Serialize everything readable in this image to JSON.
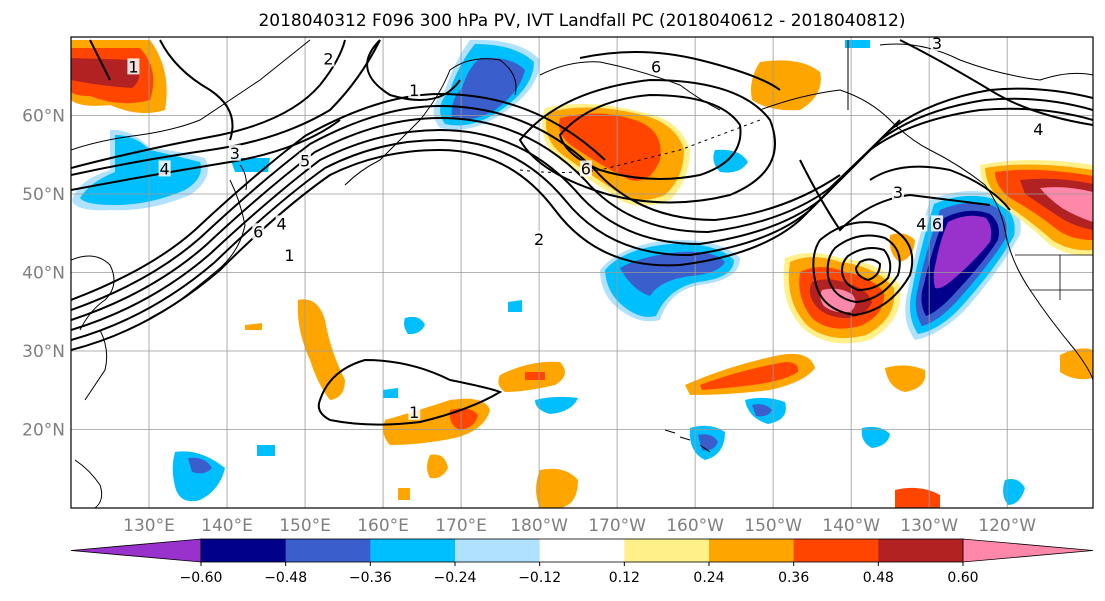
{
  "figure": {
    "title": "2018040312 F096 300 hPa PV, IVT Landfall PC (2018040612 - 2018040812)"
  },
  "map": {
    "lon_range": [
      120,
      251
    ],
    "lat_range": [
      10,
      70
    ],
    "lon_ticks": [
      {
        "lon": 130,
        "label": "130°E"
      },
      {
        "lon": 140,
        "label": "140°E"
      },
      {
        "lon": 150,
        "label": "150°E"
      },
      {
        "lon": 160,
        "label": "160°E"
      },
      {
        "lon": 170,
        "label": "170°E"
      },
      {
        "lon": 180,
        "label": "180°W"
      },
      {
        "lon": 190,
        "label": "170°W"
      },
      {
        "lon": 200,
        "label": "160°W"
      },
      {
        "lon": 210,
        "label": "150°W"
      },
      {
        "lon": 220,
        "label": "140°W"
      },
      {
        "lon": 230,
        "label": "130°W"
      },
      {
        "lon": 240,
        "label": "120°W"
      }
    ],
    "lat_ticks": [
      {
        "lat": 20,
        "label": "20°N"
      },
      {
        "lat": 30,
        "label": "30°N"
      },
      {
        "lat": 40,
        "label": "40°N"
      },
      {
        "lat": 50,
        "label": "50°N"
      },
      {
        "lat": 60,
        "label": "60°N"
      }
    ],
    "grid": true,
    "contour_labels": [
      {
        "text": "2",
        "lon": 153,
        "lat": 67
      },
      {
        "text": "1",
        "lon": 128,
        "lat": 66
      },
      {
        "text": "3",
        "lon": 141,
        "lat": 55
      },
      {
        "text": "5",
        "lon": 150,
        "lat": 54
      },
      {
        "text": "4",
        "lon": 132,
        "lat": 53
      },
      {
        "text": "6",
        "lon": 144,
        "lat": 45
      },
      {
        "text": "4",
        "lon": 147,
        "lat": 46
      },
      {
        "text": "1",
        "lon": 148,
        "lat": 42
      },
      {
        "text": "6",
        "lon": 195,
        "lat": 66
      },
      {
        "text": "6",
        "lon": 186,
        "lat": 53
      },
      {
        "text": "2",
        "lon": 180,
        "lat": 44
      },
      {
        "text": "1",
        "lon": 164,
        "lat": 63
      },
      {
        "text": "3",
        "lon": 226,
        "lat": 50
      },
      {
        "text": "3",
        "lon": 231,
        "lat": 69
      },
      {
        "text": "6",
        "lon": 231,
        "lat": 46
      },
      {
        "text": "4",
        "lon": 229,
        "lat": 46
      },
      {
        "text": "4",
        "lon": 244,
        "lat": 58
      },
      {
        "text": "1",
        "lon": 164,
        "lat": 22
      }
    ]
  },
  "colorbar": {
    "levels": [
      -0.72,
      -0.6,
      -0.48,
      -0.36,
      -0.24,
      -0.12,
      0.12,
      0.24,
      0.36,
      0.48,
      0.6,
      0.72
    ],
    "colors": [
      "#9932cc",
      "#00008b",
      "#3a5fcd",
      "#00bfff",
      "#b0e2ff",
      "#ffffff",
      "#fff08a",
      "#ffa500",
      "#ff4500",
      "#b22222",
      "#ff88aa"
    ],
    "extend": "both",
    "tick_labels": [
      "−0.60",
      "−0.48",
      "−0.36",
      "−0.24",
      "−0.12",
      "0.12",
      "0.24",
      "0.36",
      "0.48",
      "0.60"
    ]
  }
}
